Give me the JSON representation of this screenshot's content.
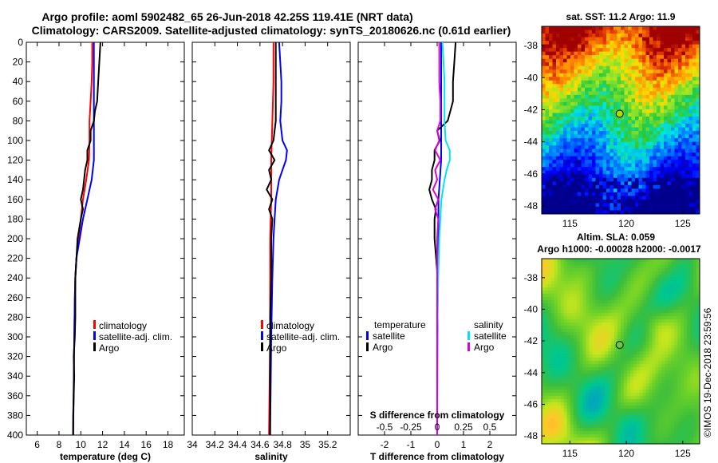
{
  "title": {
    "line1": "Argo profile: aoml 5902482_65 26-Jun-2018 42.25S 119.41E (NRT data)",
    "line2": "Climatology: CARS2009. Satellite-adjusted climatology: synTS_20180626.nc (0.61d earlier)"
  },
  "credit": "©IMOS 19-Dec-2018 23:59:56",
  "colors": {
    "climatology": "#ff0000",
    "satellite": "#0000ff",
    "argo": "#000000",
    "salinity_satellite": "#00e5ee",
    "salinity_argo": "#dd00dd"
  },
  "chart_data": [
    {
      "id": "temperature",
      "type": "line",
      "xlabel": "temperature (deg C)",
      "ylabel": "",
      "xlim": [
        5,
        19.5
      ],
      "ylim": [
        400,
        0
      ],
      "x_ticks": [
        6,
        8,
        10,
        12,
        14,
        16,
        18
      ],
      "x_tick_labels": [
        "6",
        "8",
        "10",
        "12",
        "14",
        "16",
        "18"
      ],
      "y_ticks": [
        0,
        20,
        40,
        60,
        80,
        100,
        120,
        140,
        160,
        180,
        200,
        220,
        240,
        260,
        280,
        300,
        320,
        340,
        360,
        380,
        400
      ],
      "y_tick_labels": [
        "0",
        "20",
        "40",
        "60",
        "80",
        "100",
        "120",
        "140",
        "160",
        "180",
        "200",
        "220",
        "240",
        "260",
        "280",
        "300",
        "320",
        "340",
        "360",
        "380",
        "400"
      ],
      "legend": [
        "climatology",
        "satellite-adj. clim.",
        "Argo"
      ],
      "series": [
        {
          "name": "climatology",
          "color": "#ff0000",
          "depth": [
            0,
            20,
            40,
            60,
            80,
            100,
            120,
            140,
            160,
            180,
            200,
            220,
            240,
            260,
            300,
            400
          ],
          "values": [
            11.05,
            11.05,
            11.0,
            10.9,
            10.8,
            10.8,
            10.75,
            10.5,
            10.2,
            10.0,
            9.8,
            9.6,
            9.5,
            9.45,
            9.4,
            9.3
          ]
        },
        {
          "name": "satellite-adj. clim.",
          "color": "#0000ff",
          "depth": [
            0,
            20,
            40,
            60,
            80,
            100,
            120,
            140,
            160,
            180,
            200,
            220,
            240,
            260,
            300,
            400
          ],
          "values": [
            11.2,
            11.2,
            11.2,
            11.2,
            11.2,
            11.2,
            11.2,
            11.0,
            10.6,
            10.2,
            9.9,
            9.6,
            9.5,
            9.45,
            9.4,
            9.3
          ]
        },
        {
          "name": "Argo",
          "color": "#000000",
          "depth": [
            0,
            10,
            20,
            40,
            60,
            70,
            80,
            90,
            100,
            110,
            120,
            130,
            140,
            150,
            160,
            170,
            180,
            200,
            220,
            240,
            260,
            280,
            300,
            320,
            340,
            360,
            380,
            400
          ],
          "values": [
            11.8,
            11.75,
            11.7,
            11.6,
            11.5,
            11.3,
            11.2,
            10.9,
            10.9,
            10.6,
            10.6,
            10.4,
            10.3,
            10.2,
            10.0,
            10.2,
            10.0,
            9.7,
            9.6,
            9.5,
            9.5,
            9.5,
            9.45,
            9.35,
            9.4,
            9.35,
            9.3,
            9.3
          ]
        }
      ]
    },
    {
      "id": "salinity",
      "type": "line",
      "xlabel": "salinity",
      "ylabel": "",
      "xlim": [
        34,
        35.4
      ],
      "ylim": [
        400,
        0
      ],
      "x_ticks": [
        34,
        34.2,
        34.4,
        34.6,
        34.8,
        35,
        35.2
      ],
      "x_tick_labels": [
        "34",
        "34.2",
        "34.4",
        "34.6",
        "34.8",
        "35",
        "35.2"
      ],
      "legend": [
        "climatology",
        "satellite-adj. clim.",
        "Argo"
      ],
      "series": [
        {
          "name": "climatology",
          "color": "#ff0000",
          "depth": [
            0,
            40,
            80,
            120,
            160,
            200,
            260,
            300,
            400
          ],
          "values": [
            34.72,
            34.72,
            34.71,
            34.7,
            34.7,
            34.69,
            34.69,
            34.69,
            34.68
          ]
        },
        {
          "name": "satellite-adj. clim.",
          "color": "#0000ff",
          "depth": [
            0,
            20,
            40,
            60,
            80,
            100,
            110,
            120,
            130,
            140,
            160,
            180,
            200,
            240,
            300,
            400
          ],
          "values": [
            34.77,
            34.78,
            34.79,
            34.79,
            34.78,
            34.8,
            34.84,
            34.83,
            34.8,
            34.77,
            34.74,
            34.73,
            34.72,
            34.71,
            34.7,
            34.69
          ]
        },
        {
          "name": "Argo",
          "color": "#000000",
          "depth": [
            0,
            20,
            40,
            60,
            80,
            90,
            100,
            110,
            120,
            130,
            140,
            150,
            160,
            170,
            180,
            200,
            240,
            280,
            320,
            360,
            400
          ],
          "values": [
            34.74,
            34.74,
            34.74,
            34.74,
            34.74,
            34.73,
            34.72,
            34.68,
            34.73,
            34.68,
            34.7,
            34.66,
            34.71,
            34.68,
            34.71,
            34.7,
            34.7,
            34.69,
            34.69,
            34.69,
            34.69
          ]
        }
      ]
    },
    {
      "id": "difference",
      "type": "line",
      "xlabel": "T difference from climatology",
      "xlabel_top": "S difference from climatology",
      "xlim": [
        -3,
        3
      ],
      "ylim": [
        400,
        0
      ],
      "x_ticks": [
        -2,
        -1,
        0,
        1,
        2
      ],
      "x_tick_labels": [
        "-2",
        "-1",
        "0",
        "1",
        "2"
      ],
      "s_ticks": [
        -0.5,
        -0.25,
        0,
        0.25,
        0.5
      ],
      "s_tick_labels": [
        "-0.5",
        "-0.25",
        "0",
        "0.25",
        "0.5"
      ],
      "legend": {
        "temperature_heading": "temperature",
        "salinity_heading": "salinity",
        "temperature_items": [
          "satellite",
          "Argo"
        ],
        "salinity_items": [
          "satellite",
          "Argo"
        ]
      },
      "series": [
        {
          "name": "temperature satellite",
          "color": "#0000ff",
          "depth": [
            0,
            100,
            120,
            140,
            160,
            200,
            260,
            300,
            400
          ],
          "values": [
            0.15,
            0.15,
            0.15,
            0.1,
            0.05,
            0.05,
            0.02,
            0.01,
            0.0
          ]
        },
        {
          "name": "temperature Argo",
          "color": "#000000",
          "depth": [
            0,
            20,
            40,
            60,
            80,
            90,
            100,
            110,
            120,
            130,
            140,
            150,
            160,
            170,
            180,
            200,
            240,
            300,
            400
          ],
          "values": [
            0.7,
            0.65,
            0.6,
            0.6,
            0.4,
            0.0,
            0.1,
            -0.1,
            -0.1,
            -0.2,
            -0.2,
            -0.3,
            -0.2,
            -0.05,
            -0.1,
            -0.1,
            0.02,
            0.0,
            0.0
          ]
        },
        {
          "name": "salinity satellite",
          "color": "#00e5ee",
          "depth": [
            0,
            40,
            80,
            100,
            110,
            120,
            130,
            140,
            160,
            180,
            200,
            240,
            300,
            400
          ],
          "values": [
            0.05,
            0.07,
            0.07,
            0.08,
            0.12,
            0.12,
            0.09,
            0.07,
            0.04,
            0.03,
            0.02,
            0.01,
            0.0,
            0.0
          ]
        },
        {
          "name": "salinity Argo",
          "color": "#dd00dd",
          "depth": [
            0,
            40,
            60,
            80,
            90,
            100,
            110,
            120,
            130,
            140,
            150,
            160,
            170,
            180,
            200,
            300,
            400
          ],
          "values": [
            0.02,
            0.02,
            0.03,
            0.03,
            0.0,
            0.02,
            -0.02,
            0.03,
            -0.02,
            0.0,
            -0.04,
            0.01,
            -0.02,
            0.01,
            0.0,
            0.0,
            0.0
          ]
        }
      ]
    },
    {
      "id": "sst_map",
      "type": "heatmap",
      "title": "sat. SST: 11.2 Argo: 11.9",
      "x_ticks": [
        115,
        120,
        125
      ],
      "x_tick_labels": [
        "115",
        "120",
        "125"
      ],
      "y_ticks": [
        -38,
        -40,
        -42,
        -44,
        -46,
        -48
      ],
      "y_tick_labels": [
        "-38",
        "-40",
        "-42",
        "-44",
        "-46",
        "-48"
      ],
      "xlim": [
        112.5,
        126.5
      ],
      "ylim": [
        -48.5,
        -36.8
      ],
      "marker": {
        "lon": 119.41,
        "lat": -42.25
      }
    },
    {
      "id": "sla_map",
      "type": "heatmap",
      "title": "Altim. SLA: 0.059",
      "subtitle": "Argo h1000: -0.00028 h2000: -0.0017",
      "x_ticks": [
        115,
        120,
        125
      ],
      "x_tick_labels": [
        "115",
        "120",
        "125"
      ],
      "y_ticks": [
        -38,
        -40,
        -42,
        -44,
        -46,
        -48
      ],
      "y_tick_labels": [
        "-38",
        "-40",
        "-42",
        "-44",
        "-46",
        "-48"
      ],
      "xlim": [
        112.5,
        126.5
      ],
      "ylim": [
        -48.5,
        -36.8
      ],
      "marker": {
        "lon": 119.41,
        "lat": -42.25
      }
    }
  ]
}
